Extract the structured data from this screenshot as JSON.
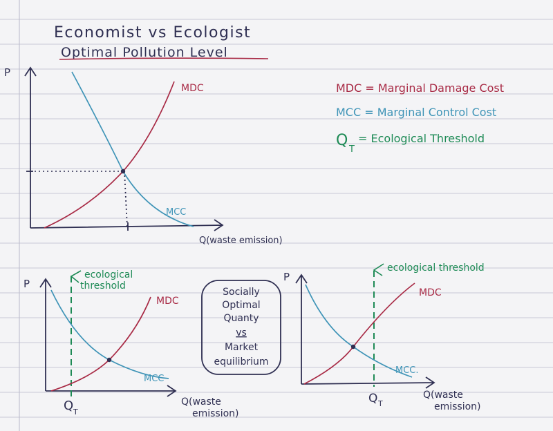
{
  "title": {
    "line1": "Economist vs Ecologist",
    "line2": "Optimal Pollution Level"
  },
  "legend": {
    "mdc": "MDC = Marginal Damage Cost",
    "mcc": "MCC = Marginal Control Cost",
    "qt_symbol": "Q",
    "qt_sub": "T",
    "qt_text": "= Ecological Threshold"
  },
  "graph_top": {
    "y_axis": "P",
    "x_axis": "Q(waste emission)",
    "mdc_label": "MDC",
    "mcc_label": "MCC"
  },
  "graph_left": {
    "y_axis": "P",
    "threshold_line1": "ecological",
    "threshold_line2": "threshold",
    "mdc_label": "MDC",
    "mcc_label": "MCC",
    "qt_symbol": "Q",
    "qt_sub": "T",
    "x_axis_line1": "Q(waste",
    "x_axis_line2": "emission)"
  },
  "center_box": {
    "line1": "Socially",
    "line2": "Optimal",
    "line3": "Quanty",
    "line4": "vs",
    "line5": "Market",
    "line6": "equilibrium"
  },
  "graph_right": {
    "y_axis": "P",
    "threshold_label": "ecological threshold",
    "mdc_label": "MDC",
    "mcc_label": "MCC.",
    "qt_symbol": "Q",
    "qt_sub": "T",
    "x_axis_line1": "Q(waste",
    "x_axis_line2": "emission)"
  },
  "colors": {
    "paper": "#f4f4f6",
    "rule_line": "#c9c9d6",
    "margin_line": "#b9b9c9",
    "ink": "#2f2f52",
    "mdc": "#a82a45",
    "mcc": "#3f94b7",
    "threshold": "#1d8a55"
  }
}
